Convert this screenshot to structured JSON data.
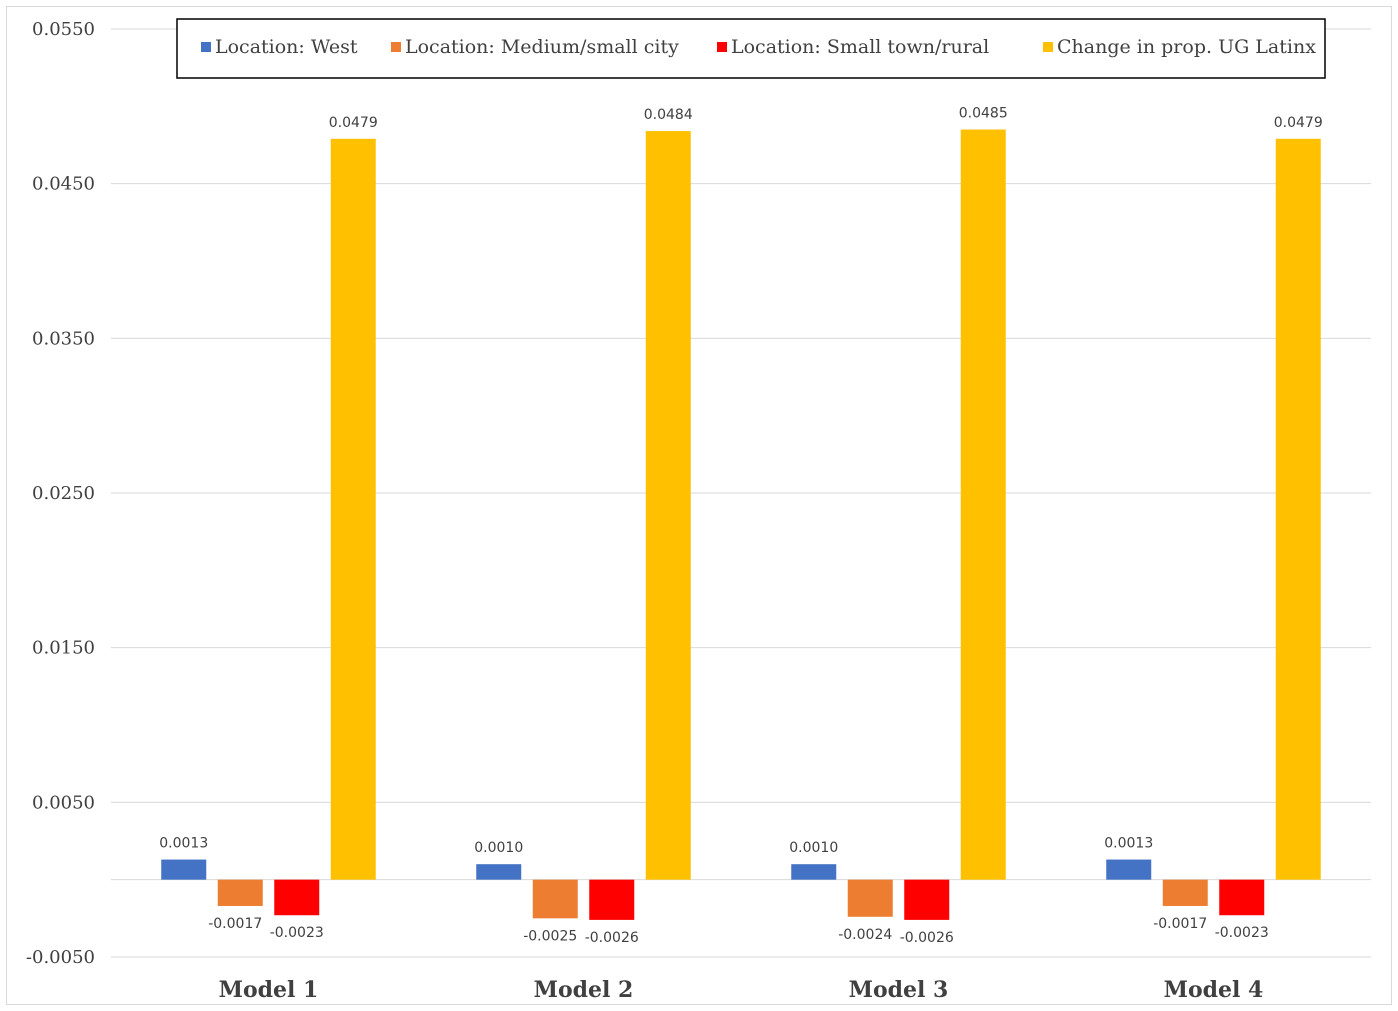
{
  "chart_data": {
    "type": "bar",
    "title": "",
    "xlabel": "",
    "ylabel": "",
    "categories": [
      "Model 1",
      "Model 2",
      "Model 3",
      "Model 4"
    ],
    "series": [
      {
        "name": "Location: West",
        "color": "#4472c4",
        "values": [
          0.0013,
          0.001,
          0.001,
          0.0013
        ]
      },
      {
        "name": "Location: Medium/small city",
        "color": "#ed7d31",
        "values": [
          -0.0017,
          -0.0025,
          -0.0024,
          -0.0017
        ]
      },
      {
        "name": "Location: Small town/rural",
        "color": "#ff0000",
        "values": [
          -0.0023,
          -0.0026,
          -0.0026,
          -0.0023
        ]
      },
      {
        "name": "Change in prop. UG Latinx",
        "color": "#ffc000",
        "values": [
          0.0479,
          0.0484,
          0.0485,
          0.0479
        ]
      }
    ],
    "data_labels": [
      [
        "0.0013",
        "0.0010",
        "0.0010",
        "0.0013"
      ],
      [
        "-0.0017",
        "-0.0025",
        "-0.0024",
        "-0.0017"
      ],
      [
        "-0.0023",
        "-0.0026",
        "-0.0026",
        "-0.0023"
      ],
      [
        "0.0479",
        "0.0484",
        "0.0485",
        "0.0479"
      ]
    ],
    "yticks": [
      -0.005,
      0.005,
      0.015,
      0.025,
      0.035,
      0.045,
      0.055
    ],
    "ytick_labels": [
      "-0.0050",
      "0.0050",
      "0.0150",
      "0.0250",
      "0.0350",
      "0.0450",
      "0.0550"
    ],
    "ylim": [
      -0.005,
      0.055
    ],
    "grid": true,
    "legend_position": "top"
  }
}
